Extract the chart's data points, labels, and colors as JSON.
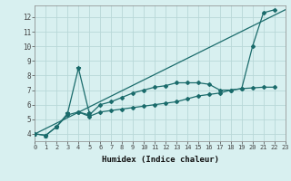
{
  "xlabel": "Humidex (Indice chaleur)",
  "x_values": [
    0,
    1,
    2,
    3,
    4,
    5,
    6,
    7,
    8,
    9,
    10,
    11,
    12,
    13,
    14,
    15,
    16,
    17,
    18,
    19,
    20,
    21,
    22,
    23
  ],
  "line_trend": {
    "x": [
      0,
      23
    ],
    "y": [
      4.0,
      12.5
    ]
  },
  "line_spike": {
    "x": [
      0,
      1,
      2,
      3,
      4,
      5
    ],
    "y": [
      4.0,
      3.9,
      4.5,
      5.4,
      8.5,
      5.4
    ]
  },
  "line_upper": {
    "x": [
      4,
      5,
      6,
      7,
      8,
      9,
      10,
      11,
      12,
      13,
      14,
      15,
      16,
      17,
      18,
      19,
      20,
      21,
      22
    ],
    "y": [
      5.5,
      5.3,
      6.0,
      6.2,
      6.5,
      6.8,
      7.0,
      7.2,
      7.3,
      7.5,
      7.5,
      7.5,
      7.4,
      7.0,
      7.0,
      7.1,
      10.0,
      12.3,
      12.5
    ]
  },
  "line_lower": {
    "x": [
      0,
      1,
      2,
      3,
      4,
      5,
      6,
      7,
      8,
      9,
      10,
      11,
      12,
      13,
      14,
      15,
      16,
      17,
      18,
      19,
      20,
      21,
      22
    ],
    "y": [
      4.0,
      3.9,
      4.5,
      5.3,
      5.5,
      5.2,
      5.5,
      5.6,
      5.7,
      5.8,
      5.9,
      6.0,
      6.1,
      6.2,
      6.4,
      6.6,
      6.7,
      6.8,
      7.0,
      7.1,
      7.15,
      7.2,
      7.2
    ]
  },
  "color": "#1a6b6b",
  "bg_color": "#d8f0f0",
  "grid_color": "#b8d8d8",
  "ylim": [
    3.5,
    12.8
  ],
  "xlim": [
    0,
    23
  ],
  "yticks": [
    4,
    5,
    6,
    7,
    8,
    9,
    10,
    11,
    12
  ],
  "xticks": [
    0,
    1,
    2,
    3,
    4,
    5,
    6,
    7,
    8,
    9,
    10,
    11,
    12,
    13,
    14,
    15,
    16,
    17,
    18,
    19,
    20,
    21,
    22,
    23
  ],
  "tick_fontsize": 5.0,
  "xlabel_fontsize": 6.5
}
